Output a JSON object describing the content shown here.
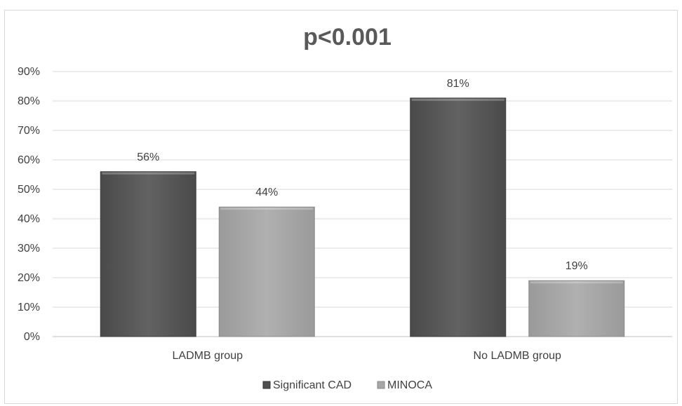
{
  "chart_data": {
    "type": "bar",
    "title": "p<0.001",
    "categories": [
      "LADMB group",
      "No LADMB group"
    ],
    "series": [
      {
        "name": "Significant CAD",
        "values": [
          56,
          81
        ],
        "color": "#595959"
      },
      {
        "name": "MINOCA",
        "values": [
          44,
          19
        ],
        "color": "#a6a6a6"
      }
    ],
    "data_labels": [
      [
        "56%",
        "81%"
      ],
      [
        "44%",
        "19%"
      ]
    ],
    "yticks": [
      "0%",
      "10%",
      "20%",
      "30%",
      "40%",
      "50%",
      "60%",
      "70%",
      "80%",
      "90%"
    ],
    "ylim": [
      0,
      90
    ],
    "grid": true,
    "legend_position": "bottom"
  }
}
